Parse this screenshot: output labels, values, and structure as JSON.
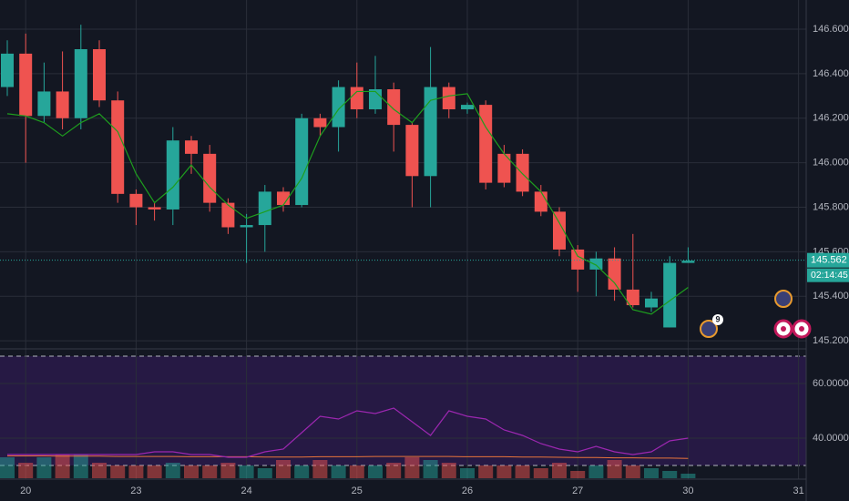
{
  "chart_data": {
    "type": "candlestick",
    "categories": [
      null,
      "20",
      null,
      null,
      null,
      null,
      null,
      "23",
      null,
      null,
      null,
      null,
      null,
      "24",
      null,
      null,
      null,
      null,
      null,
      "25",
      null,
      null,
      null,
      null,
      null,
      "26",
      null,
      null,
      null,
      null,
      null,
      "27",
      null,
      null,
      null,
      null,
      null,
      "30",
      null,
      null,
      null,
      null,
      null,
      "31"
    ],
    "open": [
      146.34,
      146.49,
      146.21,
      146.32,
      146.2,
      146.51,
      146.28,
      145.86,
      145.8,
      145.79,
      146.1,
      146.04,
      145.82,
      145.71,
      145.72,
      145.87,
      145.81,
      146.2,
      146.16,
      146.34,
      146.24,
      146.33,
      146.17,
      145.94,
      146.34,
      146.24,
      146.26,
      146.04,
      146.04,
      145.87,
      145.78,
      145.61,
      145.52,
      145.57,
      145.43,
      145.35,
      145.26,
      145.55,
      null,
      null,
      null,
      null,
      null,
      null
    ],
    "high": [
      146.55,
      146.58,
      146.45,
      146.5,
      146.62,
      146.55,
      146.32,
      145.88,
      145.82,
      146.16,
      146.12,
      146.08,
      145.84,
      145.77,
      145.9,
      145.89,
      146.22,
      146.22,
      146.37,
      146.45,
      146.48,
      146.36,
      146.18,
      146.52,
      146.36,
      146.27,
      146.28,
      146.08,
      146.06,
      145.9,
      145.8,
      145.63,
      145.6,
      145.62,
      145.68,
      145.42,
      145.58,
      145.62,
      null,
      null,
      null,
      null,
      null,
      null
    ],
    "low": [
      146.3,
      146.0,
      146.18,
      146.15,
      146.15,
      146.25,
      145.82,
      145.72,
      145.74,
      145.72,
      145.95,
      145.78,
      145.68,
      145.55,
      145.6,
      145.78,
      145.8,
      146.12,
      146.05,
      146.2,
      146.22,
      146.05,
      145.8,
      145.8,
      146.2,
      146.22,
      145.88,
      145.89,
      145.85,
      145.76,
      145.58,
      145.42,
      145.4,
      145.38,
      145.35,
      145.33,
      145.26,
      145.55,
      null,
      null,
      null,
      null,
      null,
      null
    ],
    "close": [
      146.49,
      146.21,
      146.32,
      146.2,
      146.51,
      146.28,
      145.86,
      145.8,
      145.79,
      146.1,
      146.04,
      145.82,
      145.71,
      145.72,
      145.87,
      145.81,
      146.2,
      146.16,
      146.34,
      146.24,
      146.33,
      146.17,
      145.94,
      146.34,
      146.24,
      146.26,
      145.91,
      145.91,
      145.87,
      145.78,
      145.61,
      145.52,
      145.57,
      145.43,
      145.36,
      145.39,
      145.55,
      145.56,
      null,
      null,
      null,
      null,
      null,
      null
    ],
    "up_color": "#26a69a",
    "down_color": "#ef5350",
    "ma": {
      "color": "#1e9e1e",
      "values": [
        146.22,
        146.21,
        146.18,
        146.12,
        146.18,
        146.22,
        146.14,
        145.95,
        145.82,
        145.89,
        145.99,
        145.89,
        145.81,
        145.75,
        145.78,
        145.81,
        145.93,
        146.12,
        146.24,
        146.32,
        146.32,
        146.24,
        146.18,
        146.28,
        146.3,
        146.31,
        146.16,
        146.04,
        145.95,
        145.87,
        145.73,
        145.58,
        145.54,
        145.46,
        145.34,
        145.32,
        145.38,
        145.44,
        null,
        null,
        null,
        null,
        null,
        null
      ]
    },
    "ylim": [
      145.176,
      146.731
    ],
    "yticks": [
      {
        "value": 146.6,
        "label": "146.600"
      },
      {
        "value": 146.4,
        "label": "146.400"
      },
      {
        "value": 146.2,
        "label": "146.200"
      },
      {
        "value": 146.0,
        "label": "146.000"
      },
      {
        "value": 145.8,
        "label": "145.800"
      },
      {
        "value": 145.6,
        "label": "145.600"
      },
      {
        "value": 145.4,
        "label": "145.400"
      },
      {
        "value": 145.2,
        "label": "145.200"
      }
    ],
    "current_price": 145.562,
    "countdown": "02:14:45",
    "event_badge": "9",
    "indicator": {
      "y2lim": [
        25.33,
        71
      ],
      "y2ticks": [
        {
          "value": 60,
          "label": "60.0000"
        },
        {
          "value": 40,
          "label": "40.0000"
        }
      ],
      "band": {
        "upper": 70,
        "lower": 30,
        "color": "#2a1a4a"
      },
      "volume": [
        33,
        31,
        33,
        34,
        34,
        31,
        30,
        30,
        30,
        31,
        30,
        30,
        31,
        30,
        29,
        32,
        30,
        32,
        30,
        30,
        30,
        31,
        33,
        32,
        31,
        29,
        30,
        30,
        30,
        29,
        31,
        28,
        30,
        32,
        30,
        29,
        28,
        27,
        null,
        null,
        null,
        null,
        null,
        null
      ],
      "line": {
        "color": "#9c27b0",
        "values": [
          34,
          34,
          34,
          34,
          34,
          34,
          34,
          34,
          35,
          35,
          34,
          34,
          33,
          33,
          35,
          36,
          42,
          48,
          47,
          50,
          49,
          51,
          46,
          41,
          50,
          48,
          47,
          43,
          41,
          38,
          36,
          35,
          37,
          35,
          34,
          35,
          39,
          40,
          null,
          null,
          null,
          null,
          null,
          null
        ]
      },
      "signal": {
        "color": "#e8743b",
        "values": [
          33.5,
          33.5,
          33.5,
          33.4,
          33.4,
          33.4,
          33.3,
          33.3,
          33.3,
          33.3,
          33.2,
          33.2,
          33.2,
          33.2,
          33.1,
          33.1,
          33.1,
          33.2,
          33.2,
          33.2,
          33.3,
          33.3,
          33.3,
          33.3,
          33.3,
          33.2,
          33.2,
          33.2,
          33.1,
          33.1,
          33.0,
          32.9,
          32.9,
          32.8,
          32.8,
          32.7,
          32.7,
          32.6,
          null,
          null,
          null,
          null,
          null,
          null
        ]
      }
    }
  }
}
